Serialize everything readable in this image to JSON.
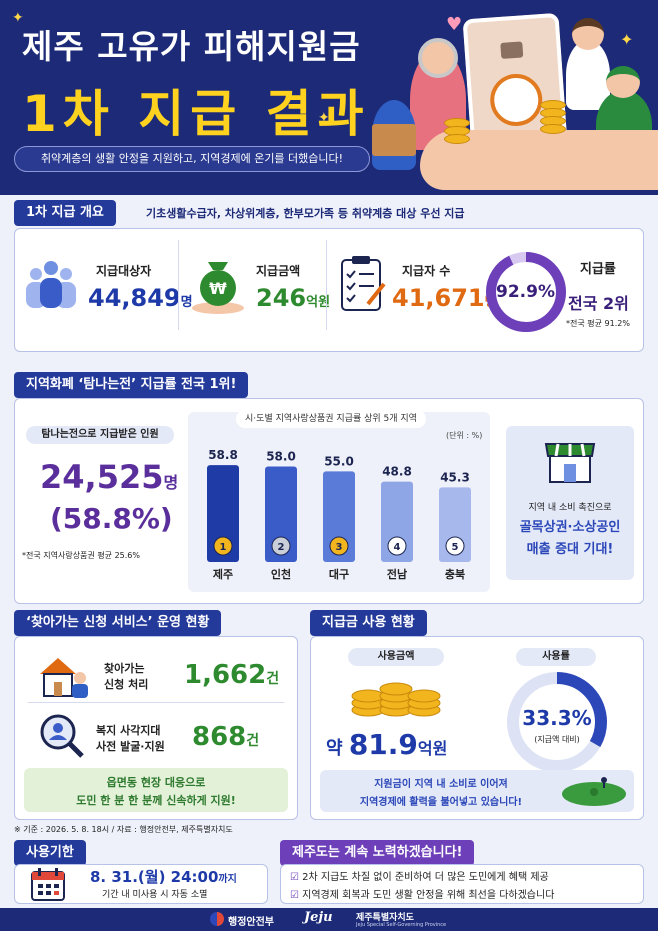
{
  "header": {
    "title": "제주 고유가 피해지원금",
    "subtitle": "1차 지급 결과",
    "tagline": "취약계층의 생활 안정을 지원하고, 지역경제에 온기를 더했습니다!",
    "card_label": "고유가 피해\n지원금"
  },
  "overview": {
    "section_title": "1차 지급 개요",
    "description": "기초생활수급자, 차상위계층, 한부모가족 등 취약계층 대상 우선 지급",
    "stats": [
      {
        "label": "지급대상자",
        "value": "44,849",
        "unit": "명",
        "icon": "people-icon",
        "color": "#1e3aa8"
      },
      {
        "label": "지급금액",
        "value": "246",
        "unit": "억원",
        "icon": "money-bag-icon",
        "color": "#2e8a2e"
      },
      {
        "label": "지급자 수",
        "value": "41,671",
        "unit": "명",
        "icon": "checklist-icon",
        "color": "#e06a12"
      }
    ],
    "rate": {
      "label": "지급률",
      "percent": "92.9%",
      "fraction": 0.929,
      "rank_prefix": "전국 ",
      "rank": "2위",
      "note": "*전국 평균 91.2%"
    }
  },
  "tamna": {
    "section_title": "지역화폐 ‘탐나는전’ 지급률 전국 1위!",
    "recipients_label": "탐나는전으로 지급받은 인원",
    "recipients_value": "24,525",
    "recipients_unit": "명",
    "recipients_percent": "(58.8%)",
    "note": "*전국 지역사랑상품권 평균 25.6%",
    "side_text1": "지역 내 소비 촉진으로",
    "side_text2": "골목상권·소상공인",
    "side_text3": "매출 증대 기대!"
  },
  "chart_data": {
    "type": "bar",
    "title": "시·도별 지역사랑상품권 지급률 상위 5개 지역",
    "unit_label": "(단위 : %)",
    "categories": [
      "제주",
      "인천",
      "대구",
      "전남",
      "충북"
    ],
    "values": [
      58.8,
      58.0,
      55.0,
      48.8,
      45.3
    ],
    "value_labels": [
      "58.8",
      "58.0",
      "55.0",
      "48.8",
      "45.3"
    ],
    "ranks": [
      "1",
      "2",
      "3",
      "4",
      "5"
    ],
    "ylim": [
      0,
      70
    ],
    "colors": [
      "#1f3ca6",
      "#3a5cc8",
      "#5a7cd8",
      "#8ea6e6",
      "#a7b8ec"
    ]
  },
  "visit_service": {
    "section_title": "‘찾아가는 신청 서비스’ 운영 현황",
    "item1_label1": "찾아가는",
    "item1_label2": "신청 처리",
    "item1_value": "1,662",
    "item1_unit": "건",
    "item2_label1": "복지 사각지대",
    "item2_label2": "사전 발굴·지원",
    "item2_value": "868",
    "item2_unit": "건",
    "banner1": "읍면동 현장 대응으로",
    "banner2": "도민 한 분 한 분께 신속하게 지원!"
  },
  "usage": {
    "section_title": "지급금 사용 현황",
    "amount_label": "사용금액",
    "amount_prefix": "약 ",
    "amount_value": "81.9",
    "amount_unit": "억원",
    "rate_label": "사용률",
    "rate_value": "33.3%",
    "rate_fraction": 0.333,
    "rate_note": "(지급액 대비)",
    "banner1": "지원금이 지역 내 소비로 이어져",
    "banner2": "지역경제에 활력을 불어넣고 있습니다!"
  },
  "source": "※ 기준 : 2026. 5. 8. 18시 / 자료 : 행정안전부, 제주특별자치도",
  "deadline": {
    "section_title": "사용기한",
    "date": "8. 31.(월) 24:00",
    "date_suffix": "까지",
    "note": "기간 내 미사용 시 자동 소멸"
  },
  "effort": {
    "section_title": "제주도는 계속 노력하겠습니다!",
    "items": [
      "2차 지급도 차질 없이 준비하여 더 많은 도민에게 혜택 제공",
      "지역경제 회복과 도민 생활 안정을 위해 최선을 다하겠습니다"
    ]
  },
  "footer": {
    "logo1": "행정안전부",
    "logo2": "Jeju",
    "logo3": "제주특별자치도",
    "logo3_en": "Jeju Special Self-Governing Province"
  }
}
